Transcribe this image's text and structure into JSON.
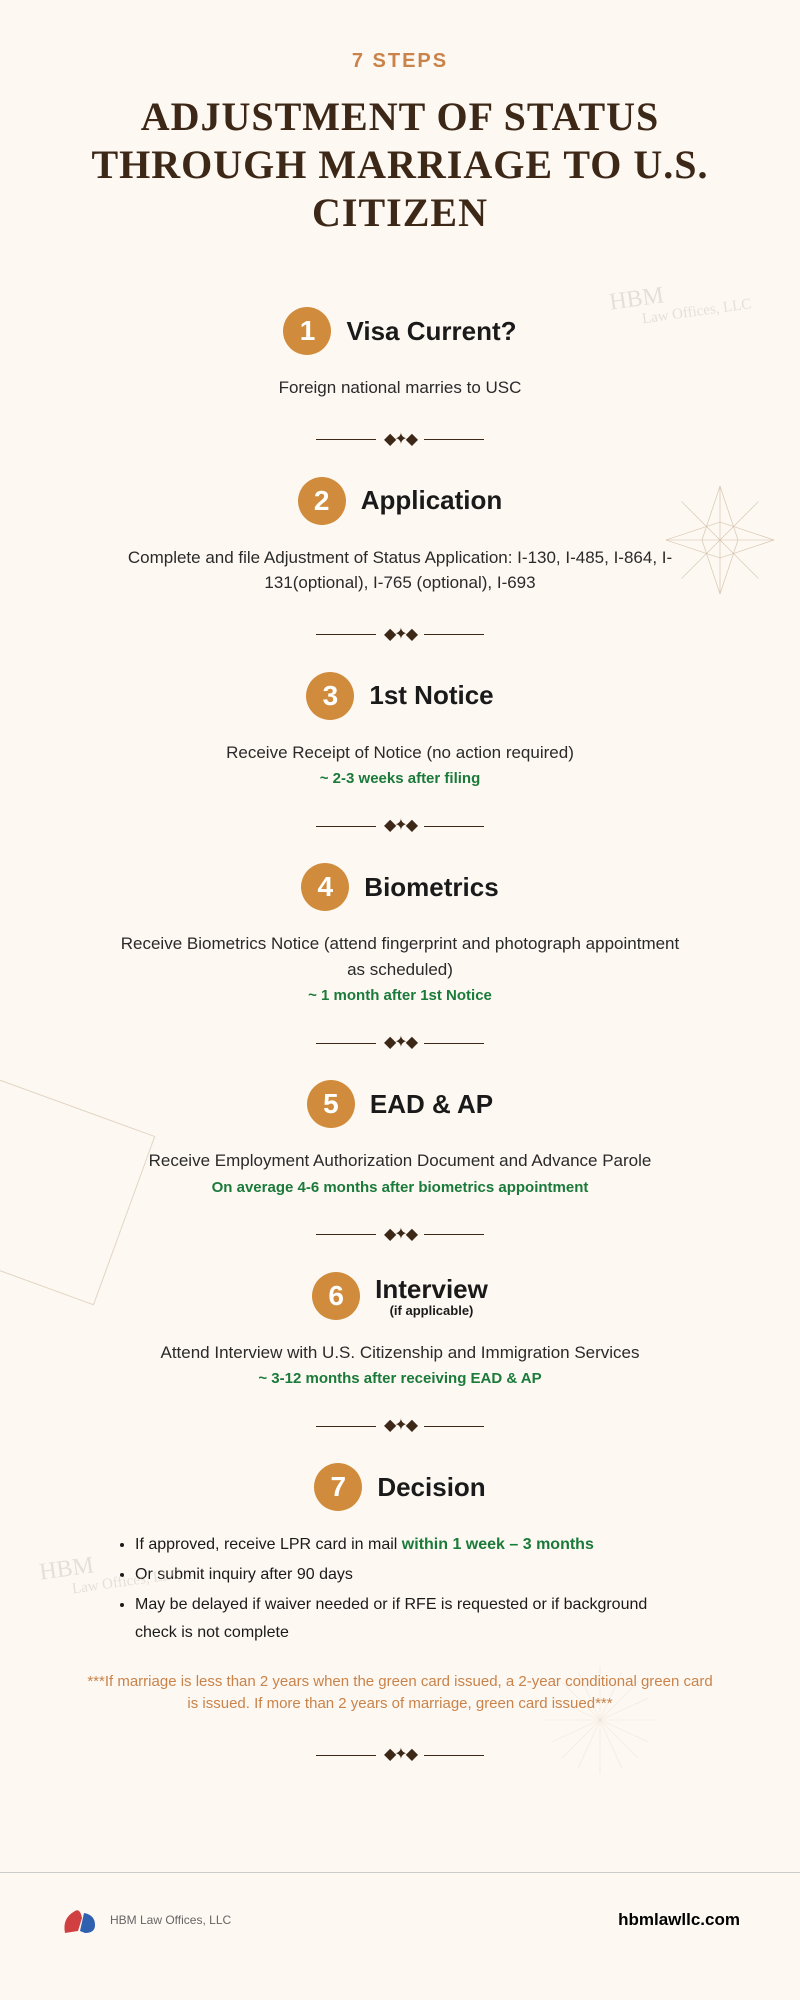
{
  "pretitle": "7 STEPS",
  "main_title": "ADJUSTMENT OF STATUS THROUGH MARRIAGE TO U.S. CITIZEN",
  "watermark_main": "HBM",
  "watermark_sub": "Law Offices, LLC",
  "colors": {
    "background": "#fdf8f2",
    "accent": "#c9834a",
    "badge": "#d08c3c",
    "title": "#3d2817",
    "timing": "#1a7a3a",
    "watermark": "#d0c8bf"
  },
  "steps": [
    {
      "num": "1",
      "title": "Visa Current?",
      "desc": "Foreign national marries to USC",
      "timing": ""
    },
    {
      "num": "2",
      "title": "Application",
      "desc": "Complete and file Adjustment of Status Application: I-130, I-485, I-864, I-131(optional), I-765 (optional), I-693",
      "timing": ""
    },
    {
      "num": "3",
      "title": "1st Notice",
      "desc": "Receive Receipt of Notice (no action required)",
      "timing": "~ 2-3 weeks after filing"
    },
    {
      "num": "4",
      "title": "Biometrics",
      "desc": "Receive Biometrics Notice (attend fingerprint and photograph appointment as scheduled)",
      "timing": "~ 1 month after 1st Notice"
    },
    {
      "num": "5",
      "title": "EAD & AP",
      "desc": "Receive Employment Authorization Document and Advance Parole",
      "timing": "On average 4-6 months after biometrics appointment"
    },
    {
      "num": "6",
      "title": "Interview",
      "subtitle": "(if applicable)",
      "desc": "Attend Interview with U.S. Citizenship and Immigration Services",
      "timing": "~ 3-12 months after receiving EAD & AP"
    }
  ],
  "step7": {
    "num": "7",
    "title": "Decision",
    "bullets": [
      {
        "pre": "If approved, receive LPR card in mail ",
        "highlight": "within 1 week – 3 months",
        "post": ""
      },
      {
        "pre": "Or submit inquiry after 90 days",
        "highlight": "",
        "post": ""
      },
      {
        "pre": "May be delayed if waiver needed or if RFE is requested or if background check is not complete",
        "highlight": "",
        "post": ""
      }
    ]
  },
  "footer_note": "***If marriage is less than 2 years when the green card issued, a 2-year conditional green card is issued. If more than 2 years of marriage, green card issued***",
  "bottom": {
    "logo_text": "HBM Law Offices, LLC",
    "url": "hbmlawllc.com"
  }
}
